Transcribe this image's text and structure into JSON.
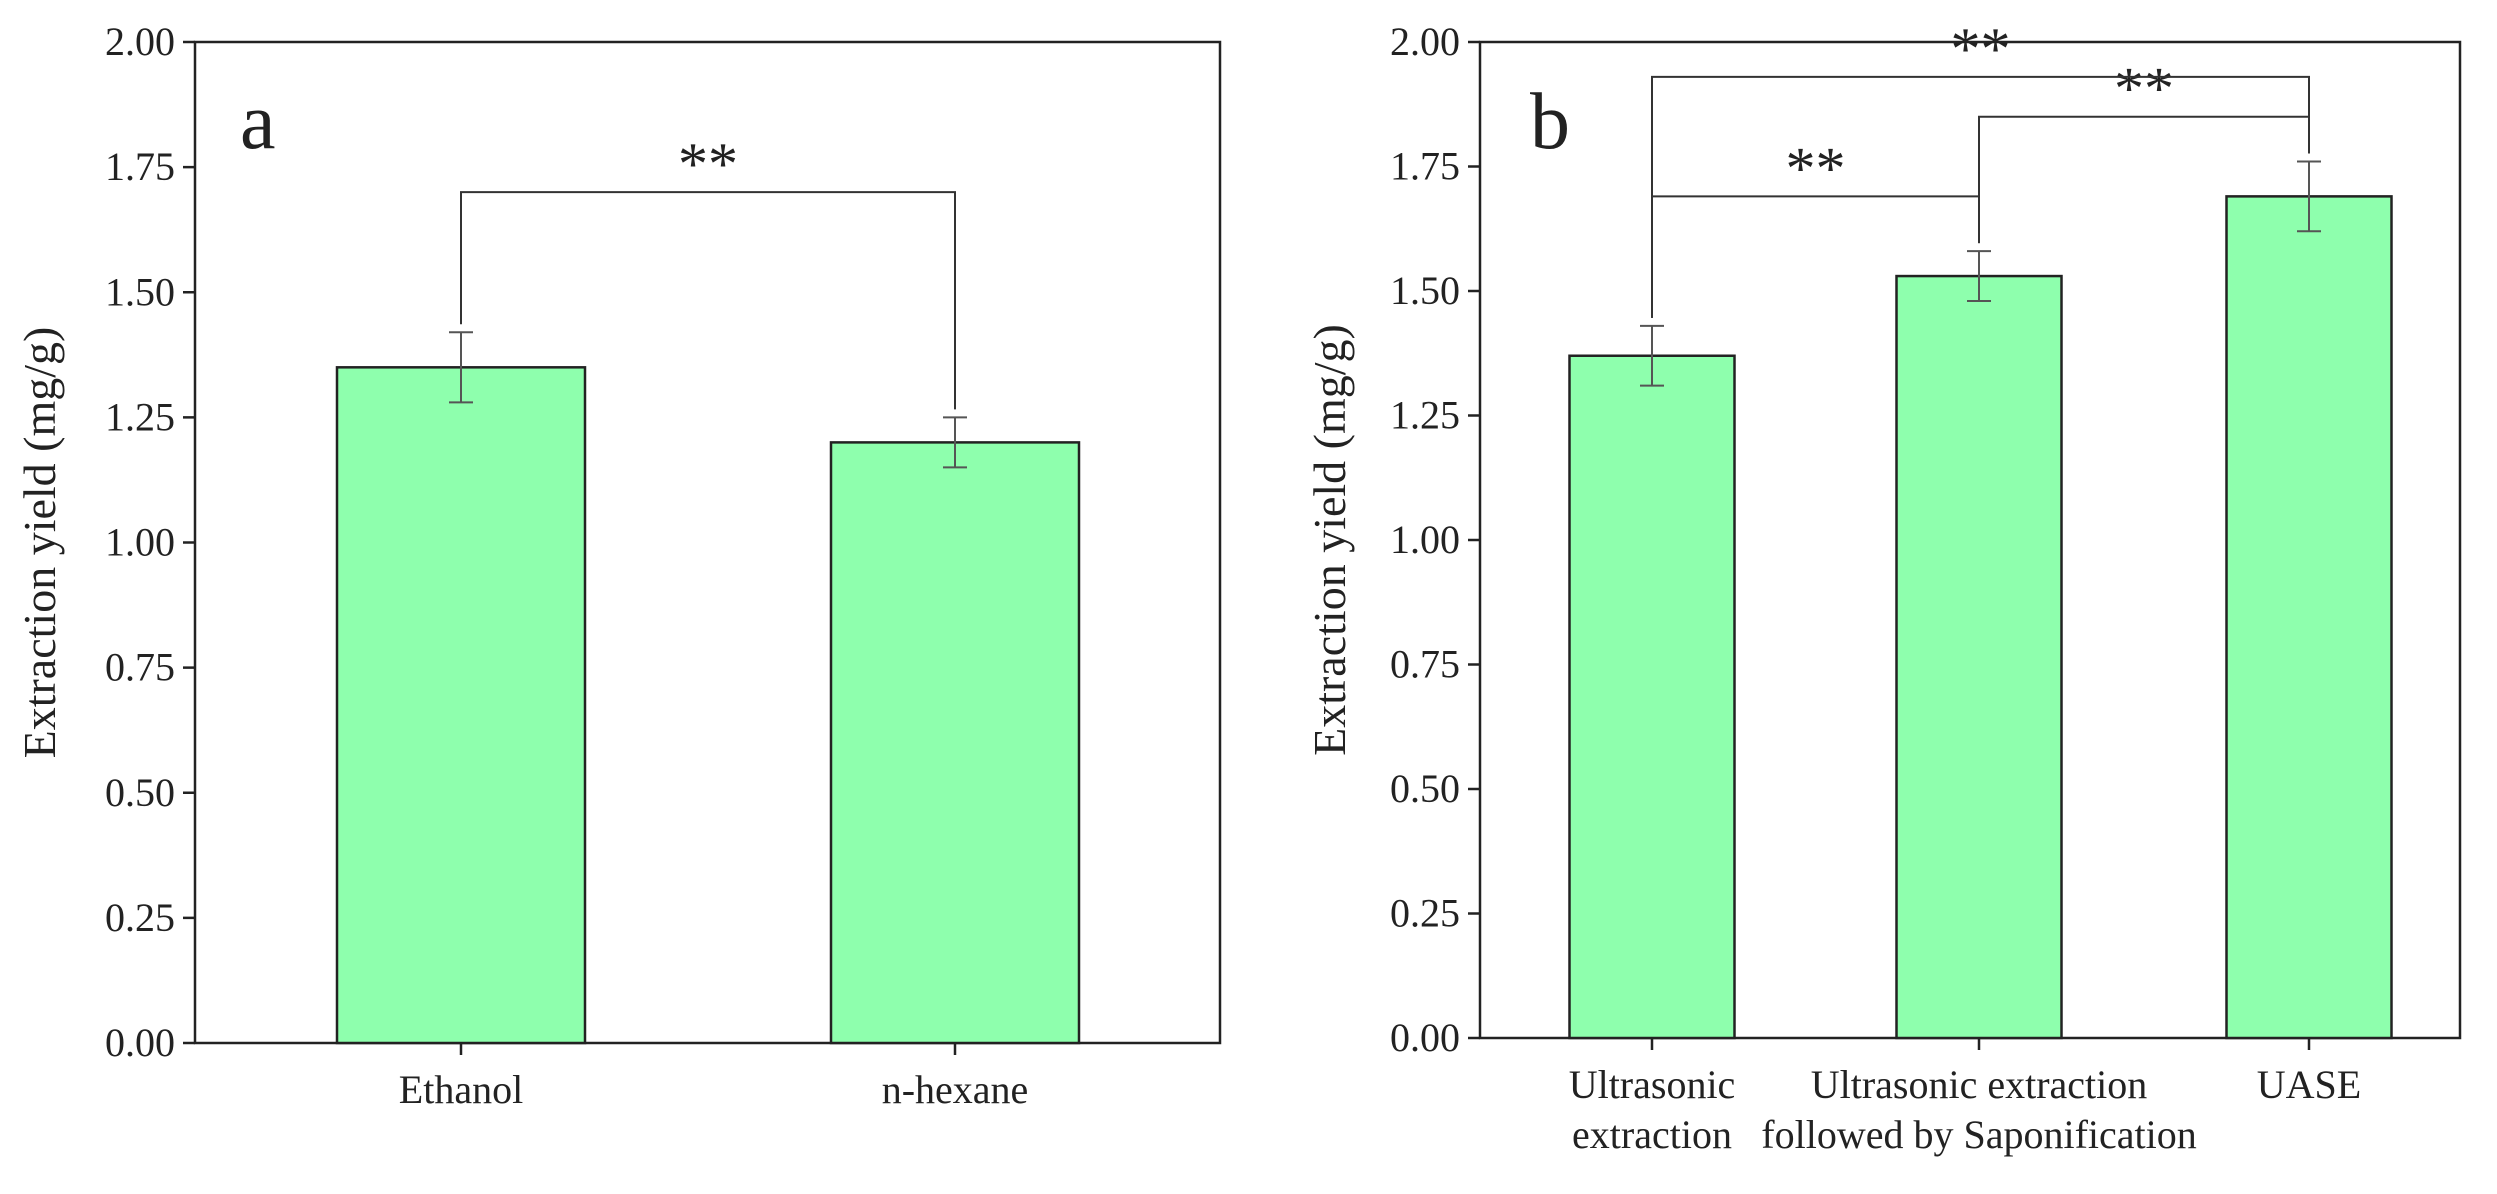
{
  "chart_data": [
    {
      "type": "bar",
      "panel_label": "a",
      "ylabel": "Extraction yield (mg/g)",
      "xlabel": "",
      "ylim": [
        0,
        2
      ],
      "yticks": [
        "0.00",
        "0.25",
        "0.50",
        "0.75",
        "1.00",
        "1.25",
        "1.50",
        "1.75",
        "2.00"
      ],
      "categories": [
        [
          "Ethanol"
        ],
        [
          "n-hexane"
        ]
      ],
      "values": [
        1.35,
        1.2
      ],
      "errors": [
        0.07,
        0.05
      ],
      "bar_color": "#8effad",
      "significance": [
        {
          "from": 0,
          "to": 1,
          "label": "**",
          "y": 1.7
        }
      ]
    },
    {
      "type": "bar",
      "panel_label": "b",
      "ylabel": "Extraction yield (mg/g)",
      "xlabel": "",
      "ylim": [
        0,
        2
      ],
      "yticks": [
        "0.00",
        "0.25",
        "0.50",
        "0.75",
        "1.00",
        "1.25",
        "1.50",
        "1.75",
        "2.00"
      ],
      "categories": [
        [
          "Ultrasonic",
          "extraction"
        ],
        [
          "Ultrasonic extraction",
          "followed by Saponification"
        ],
        [
          "UASE"
        ]
      ],
      "values": [
        1.37,
        1.53,
        1.69
      ],
      "errors": [
        0.06,
        0.05,
        0.07
      ],
      "bar_color": "#8effad",
      "significance": [
        {
          "from": 0,
          "to": 1,
          "label": "**",
          "y": 1.69
        },
        {
          "from": 1,
          "to": 2,
          "label": "**",
          "y": 1.85
        },
        {
          "from": 0,
          "to": 2,
          "label": "**",
          "y": 1.93
        }
      ]
    }
  ]
}
